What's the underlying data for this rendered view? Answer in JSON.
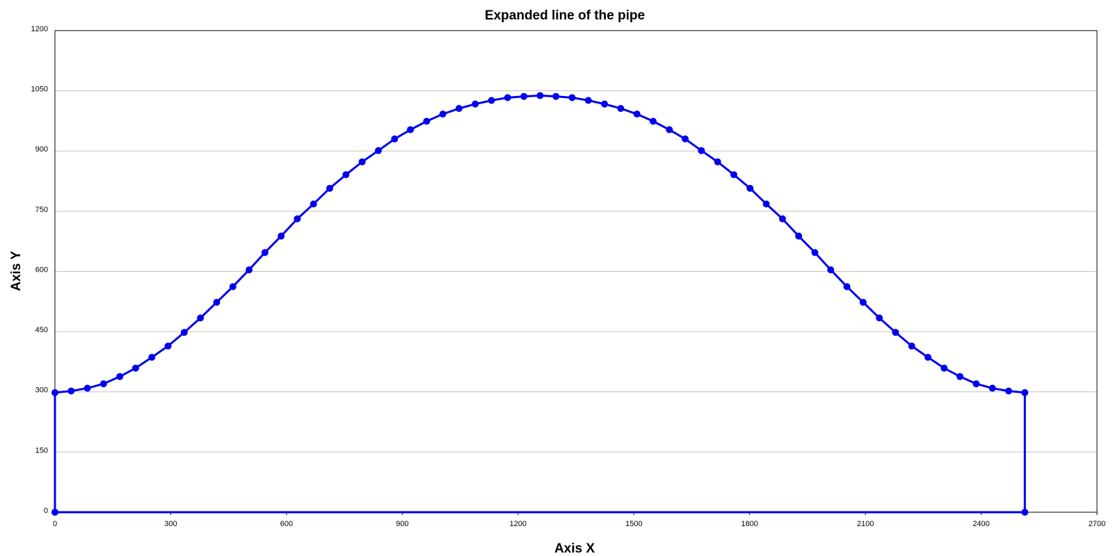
{
  "chart_data": {
    "type": "line",
    "title": "Expanded line of the pipe",
    "x_label": "Axis X",
    "y_label": "Axis Y",
    "x": [
      0,
      0,
      42,
      84,
      126,
      168,
      209,
      251,
      293,
      335,
      377,
      419,
      461,
      503,
      544,
      586,
      628,
      670,
      712,
      754,
      796,
      838,
      880,
      921,
      963,
      1005,
      1047,
      1089,
      1131,
      1173,
      1215,
      1257,
      1298,
      1340,
      1382,
      1424,
      1466,
      1508,
      1550,
      1592,
      1633,
      1675,
      1717,
      1759,
      1801,
      1843,
      1885,
      1927,
      1969,
      2010,
      2052,
      2094,
      2136,
      2178,
      2220,
      2262,
      2304,
      2345,
      2387,
      2429,
      2471,
      2513,
      2513,
      0
    ],
    "values": [
      0,
      298,
      302,
      309,
      320,
      338,
      359,
      386,
      414,
      448,
      484,
      523,
      562,
      604,
      647,
      688,
      731,
      768,
      807,
      841,
      873,
      901,
      930,
      953,
      974,
      992,
      1006,
      1017,
      1026,
      1033,
      1036,
      1038,
      1036,
      1033,
      1026,
      1017,
      1006,
      992,
      974,
      953,
      930,
      901,
      873,
      841,
      807,
      768,
      731,
      688,
      647,
      604,
      562,
      523,
      484,
      448,
      414,
      386,
      359,
      338,
      320,
      309,
      302,
      298,
      0,
      0
    ],
    "color": "#0000ee",
    "xlim": [
      0,
      2700
    ],
    "xticks": [
      0,
      300,
      600,
      900,
      1200,
      1500,
      1800,
      2100,
      2400,
      2700
    ],
    "ylim": [
      0,
      1200
    ],
    "yticks": [
      0,
      150,
      300,
      450,
      600,
      750,
      900,
      1050,
      1200
    ],
    "grid": true
  }
}
